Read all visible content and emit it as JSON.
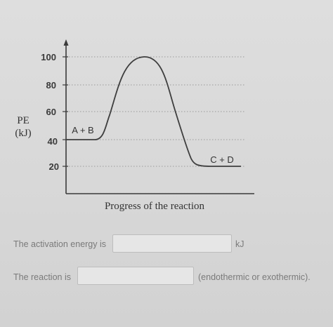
{
  "diagram": {
    "y_axis_label_line1": "PE",
    "y_axis_label_line2": "(kJ)",
    "x_axis_label": "Progress of the reaction",
    "y_ticks": [
      "100",
      "80",
      "60",
      "40",
      "20"
    ],
    "reactants_label": "A + B",
    "products_label": "C + D",
    "energy_profile": {
      "reactants_energy_kj": 40,
      "peak_energy_kj": 100,
      "products_energy_kj": 20
    }
  },
  "questions": [
    {
      "prompt": "The activation energy is",
      "value": "",
      "suffix": "kJ"
    },
    {
      "prompt": "The reaction is",
      "value": "",
      "suffix": "(endothermic or exothermic)."
    }
  ]
}
